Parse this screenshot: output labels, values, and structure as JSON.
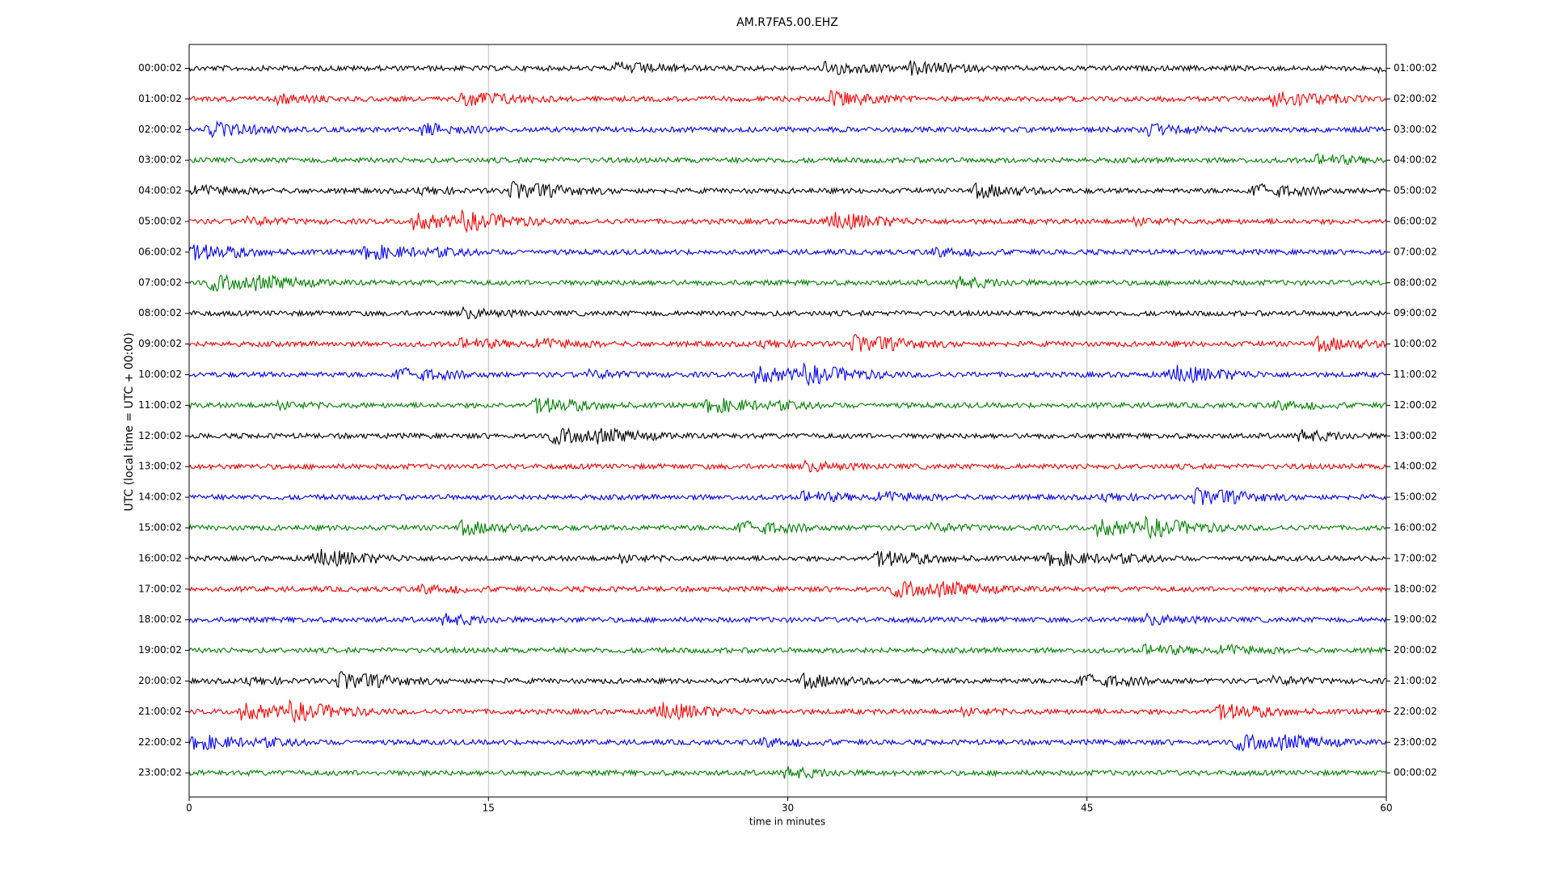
{
  "chart_data": {
    "type": "helicorder",
    "title": "AM.R7FA5.00.EHZ",
    "x_label": "time in minutes",
    "y_label": "UTC (local time = UTC + 00:00)",
    "xlim": [
      0,
      60
    ],
    "xticks": [
      0,
      15,
      30,
      45,
      60
    ],
    "grid": true,
    "series": [
      {
        "name": "00:00:02",
        "end_label": "01:00:02",
        "color": "#000000"
      },
      {
        "name": "01:00:02",
        "end_label": "02:00:02",
        "color": "#ff0000"
      },
      {
        "name": "02:00:02",
        "end_label": "03:00:02",
        "color": "#0000ff"
      },
      {
        "name": "03:00:02",
        "end_label": "04:00:02",
        "color": "#008000"
      },
      {
        "name": "04:00:02",
        "end_label": "05:00:02",
        "color": "#000000"
      },
      {
        "name": "05:00:02",
        "end_label": "06:00:02",
        "color": "#ff0000"
      },
      {
        "name": "06:00:02",
        "end_label": "07:00:02",
        "color": "#0000ff"
      },
      {
        "name": "07:00:02",
        "end_label": "08:00:02",
        "color": "#008000"
      },
      {
        "name": "08:00:02",
        "end_label": "09:00:02",
        "color": "#000000"
      },
      {
        "name": "09:00:02",
        "end_label": "10:00:02",
        "color": "#ff0000"
      },
      {
        "name": "10:00:02",
        "end_label": "11:00:02",
        "color": "#0000ff"
      },
      {
        "name": "11:00:02",
        "end_label": "12:00:02",
        "color": "#008000"
      },
      {
        "name": "12:00:02",
        "end_label": "13:00:02",
        "color": "#000000"
      },
      {
        "name": "13:00:02",
        "end_label": "14:00:02",
        "color": "#ff0000"
      },
      {
        "name": "14:00:02",
        "end_label": "15:00:02",
        "color": "#0000ff"
      },
      {
        "name": "15:00:02",
        "end_label": "16:00:02",
        "color": "#008000"
      },
      {
        "name": "16:00:02",
        "end_label": "17:00:02",
        "color": "#000000"
      },
      {
        "name": "17:00:02",
        "end_label": "18:00:02",
        "color": "#ff0000"
      },
      {
        "name": "18:00:02",
        "end_label": "19:00:02",
        "color": "#0000ff"
      },
      {
        "name": "19:00:02",
        "end_label": "20:00:02",
        "color": "#008000"
      },
      {
        "name": "20:00:02",
        "end_label": "21:00:02",
        "color": "#000000"
      },
      {
        "name": "21:00:02",
        "end_label": "22:00:02",
        "color": "#ff0000"
      },
      {
        "name": "22:00:02",
        "end_label": "23:00:02",
        "color": "#0000ff"
      },
      {
        "name": "23:00:02",
        "end_label": "00:00:02",
        "color": "#008000"
      }
    ]
  }
}
